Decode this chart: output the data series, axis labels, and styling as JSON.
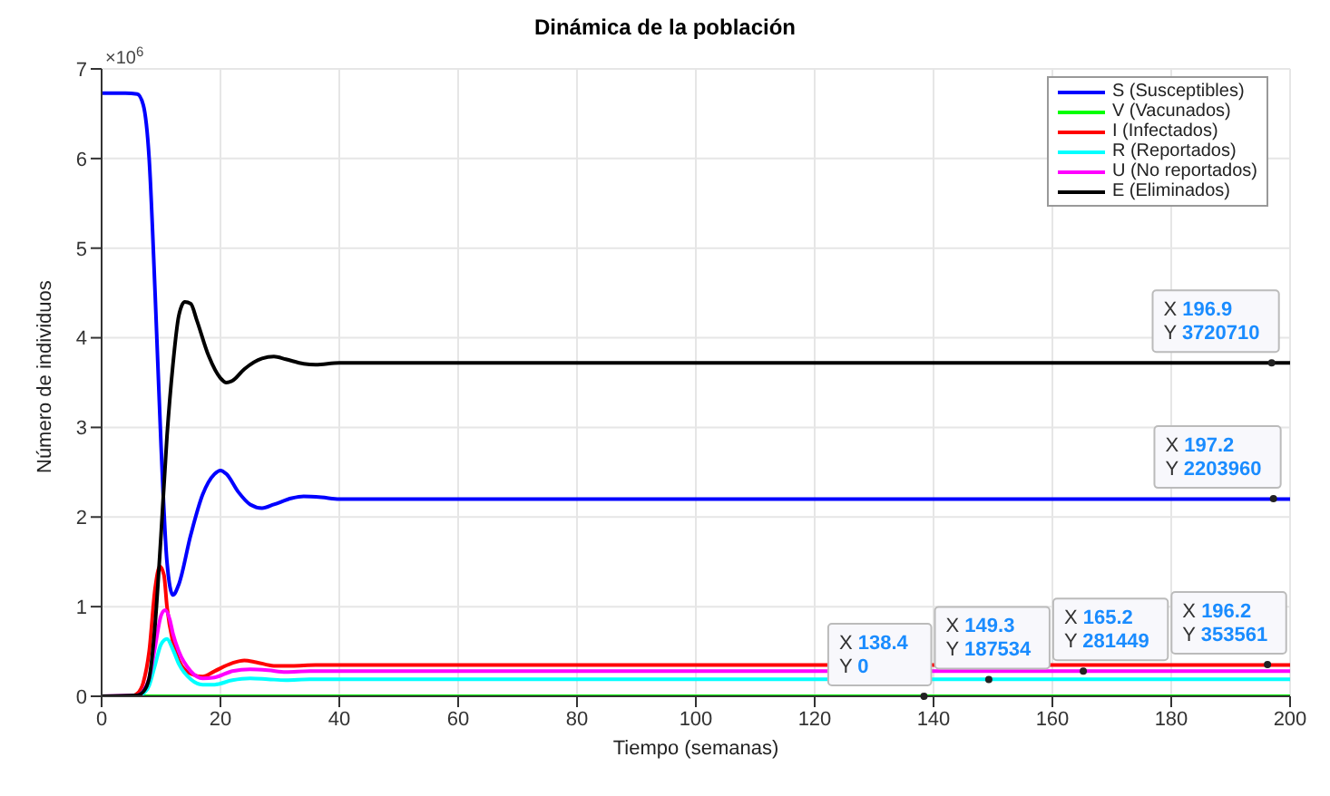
{
  "chart_data": {
    "type": "line",
    "title": "Dinámica de la población",
    "xlabel": "Tiempo (semanas)",
    "ylabel": "Número de individuos",
    "xlim": [
      0,
      200
    ],
    "xticks": [
      0,
      20,
      40,
      60,
      80,
      100,
      120,
      140,
      160,
      180,
      200
    ],
    "ylim": [
      0,
      7
    ],
    "yticks": [
      0,
      1,
      2,
      3,
      4,
      5,
      6,
      7
    ],
    "grid": true,
    "legend": "top right",
    "series": [
      {
        "name": "S (Susceptibles)",
        "color": "#0000ff",
        "x": [
          0,
          4,
          6,
          7,
          8,
          9,
          10,
          11,
          12,
          13,
          15,
          17,
          19,
          20,
          21,
          23,
          25,
          27,
          29,
          32,
          34,
          37,
          40,
          50,
          60,
          200
        ],
        "values": [
          6.73,
          6.73,
          6.72,
          6.6,
          6.0,
          4.5,
          2.8,
          1.5,
          1.13,
          1.25,
          1.8,
          2.25,
          2.48,
          2.52,
          2.48,
          2.28,
          2.14,
          2.1,
          2.14,
          2.21,
          2.23,
          2.22,
          2.2,
          2.2,
          2.2,
          2.2
        ]
      },
      {
        "name": "V (Vacunados)",
        "color": "#00ff00",
        "x": [
          0,
          200
        ],
        "values": [
          0,
          0
        ]
      },
      {
        "name": "I (Infectados)",
        "color": "#ff0000",
        "x": [
          0,
          5,
          6,
          7,
          8,
          9,
          9.8,
          10.5,
          11,
          12,
          13,
          15,
          17,
          19,
          22,
          24,
          26,
          29,
          32,
          36,
          45,
          200
        ],
        "values": [
          0,
          0,
          0.03,
          0.15,
          0.5,
          1.2,
          1.45,
          1.35,
          1.0,
          0.6,
          0.4,
          0.25,
          0.22,
          0.28,
          0.37,
          0.4,
          0.38,
          0.34,
          0.34,
          0.35,
          0.35,
          0.35
        ]
      },
      {
        "name": "R (Reportados)",
        "color": "#00ffff",
        "x": [
          0,
          6,
          7,
          8,
          9,
          10,
          11,
          12,
          13,
          15,
          17,
          19,
          22,
          25,
          28,
          31,
          35,
          45,
          200
        ],
        "values": [
          0,
          0,
          0.03,
          0.12,
          0.35,
          0.58,
          0.64,
          0.52,
          0.36,
          0.19,
          0.13,
          0.13,
          0.18,
          0.2,
          0.19,
          0.18,
          0.19,
          0.19,
          0.19
        ]
      },
      {
        "name": "U (No reportados)",
        "color": "#ff00ff",
        "x": [
          0,
          6,
          7,
          8,
          9,
          10,
          10.7,
          11.5,
          12,
          13,
          15,
          17,
          19,
          22,
          25,
          28,
          31,
          35,
          45,
          200
        ],
        "values": [
          0,
          0.01,
          0.06,
          0.2,
          0.55,
          0.9,
          0.96,
          0.85,
          0.7,
          0.5,
          0.28,
          0.2,
          0.21,
          0.28,
          0.3,
          0.29,
          0.27,
          0.28,
          0.28,
          0.28
        ]
      },
      {
        "name": "E (Eliminados)",
        "color": "#000000",
        "x": [
          0,
          6,
          7,
          8,
          9,
          10,
          11,
          12,
          13,
          14,
          15,
          16,
          18,
          20,
          21,
          22,
          24,
          27,
          29,
          31,
          34,
          36,
          40,
          45,
          60,
          200
        ],
        "values": [
          0,
          0.01,
          0.05,
          0.2,
          0.8,
          1.8,
          2.9,
          3.7,
          4.25,
          4.4,
          4.38,
          4.2,
          3.8,
          3.55,
          3.5,
          3.52,
          3.65,
          3.77,
          3.79,
          3.76,
          3.71,
          3.7,
          3.72,
          3.72,
          3.72,
          3.72
        ]
      }
    ],
    "annotations": [
      "×10$^{6}$",
      {
        "text": "X 138.4\nY 0",
        "x": 138.4,
        "y": 0
      },
      {
        "text": "X 149.3\nY 187534",
        "x": 149.3,
        "y": 0.187534
      },
      {
        "text": "X 165.2\nY 281449",
        "x": 165.2,
        "y": 0.281449
      },
      {
        "text": "X 196.2\nY 353561",
        "x": 196.2,
        "y": 0.353561
      },
      {
        "text": "X 197.2\nY 2203960",
        "x": 197.2,
        "y": 2.20396
      },
      {
        "text": "X 196.9\nY 3720710",
        "x": 196.9,
        "y": 3.72071
      }
    ]
  }
}
